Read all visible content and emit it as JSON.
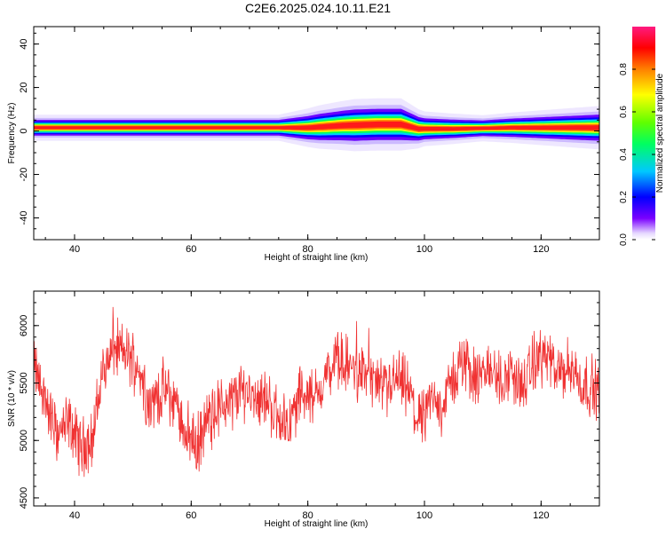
{
  "title": "C2E6.2025.024.10.11.E21",
  "colors": {
    "snr_line": "#f03232",
    "spectrum_peak": "#ff1a1a",
    "axis": "#000000"
  },
  "chart_data": [
    {
      "type": "heatmap",
      "xlabel": "Height of straight line (km)",
      "ylabel": "Frequency (Hz)",
      "xlim": [
        33,
        130
      ],
      "ylim": [
        -50,
        48
      ],
      "x_ticks": [
        "40",
        "60",
        "80",
        "100",
        "120"
      ],
      "y_ticks": [
        "40",
        "20",
        "0",
        "-20",
        "-40"
      ],
      "band_center_hz": [
        {
          "x": 33,
          "f": 1.5
        },
        {
          "x": 70,
          "f": 1.5
        },
        {
          "x": 80,
          "f": 1.5
        },
        {
          "x": 86,
          "f": 2.5
        },
        {
          "x": 92,
          "f": 3.0
        },
        {
          "x": 96,
          "f": 3.0
        },
        {
          "x": 99,
          "f": 1.0
        },
        {
          "x": 105,
          "f": 1.0
        },
        {
          "x": 115,
          "f": 1.5
        },
        {
          "x": 130,
          "f": 1.5
        }
      ],
      "band_halfwidth_hz": [
        {
          "x": 33,
          "w": 3
        },
        {
          "x": 75,
          "w": 3
        },
        {
          "x": 82,
          "w": 5
        },
        {
          "x": 88,
          "w": 6
        },
        {
          "x": 96,
          "w": 6
        },
        {
          "x": 100,
          "w": 4
        },
        {
          "x": 110,
          "w": 3
        },
        {
          "x": 120,
          "w": 4
        },
        {
          "x": 130,
          "w": 5
        }
      ],
      "colorbar": {
        "label": "Normalized spectral amplitude",
        "range": [
          0,
          1
        ],
        "ticks": [
          "0.0",
          "0.2",
          "0.4",
          "0.6",
          "0.8"
        ]
      }
    },
    {
      "type": "line",
      "xlabel": "Height of straight line (km)",
      "ylabel": "SNR (10 * v/v)",
      "xlim": [
        33,
        130
      ],
      "ylim": [
        4430,
        6300
      ],
      "x_ticks": [
        "40",
        "60",
        "80",
        "100",
        "120"
      ],
      "y_ticks": [
        "4500",
        "5000",
        "5500",
        "6000"
      ],
      "series": [
        {
          "x": [
            33,
            35,
            37,
            39,
            41,
            43,
            45,
            47,
            49,
            51,
            53,
            55,
            57,
            59,
            61,
            63,
            65,
            67,
            69,
            71,
            73,
            75,
            77,
            79,
            81,
            83,
            85,
            87,
            89,
            91,
            93,
            95,
            97,
            99,
            101,
            103,
            105,
            107,
            109,
            111,
            113,
            115,
            117,
            119,
            121,
            123,
            125,
            127,
            130
          ],
          "values": [
            5650,
            5350,
            5050,
            5150,
            4950,
            5000,
            5650,
            5800,
            5750,
            5650,
            5300,
            5450,
            5350,
            5100,
            4950,
            5200,
            5300,
            5350,
            5450,
            5400,
            5350,
            5200,
            5150,
            5450,
            5350,
            5550,
            5700,
            5650,
            5600,
            5550,
            5400,
            5550,
            5450,
            5150,
            5350,
            5300,
            5550,
            5700,
            5500,
            5650,
            5500,
            5600,
            5450,
            5700,
            5750,
            5550,
            5650,
            5500,
            5450
          ]
        }
      ]
    }
  ]
}
